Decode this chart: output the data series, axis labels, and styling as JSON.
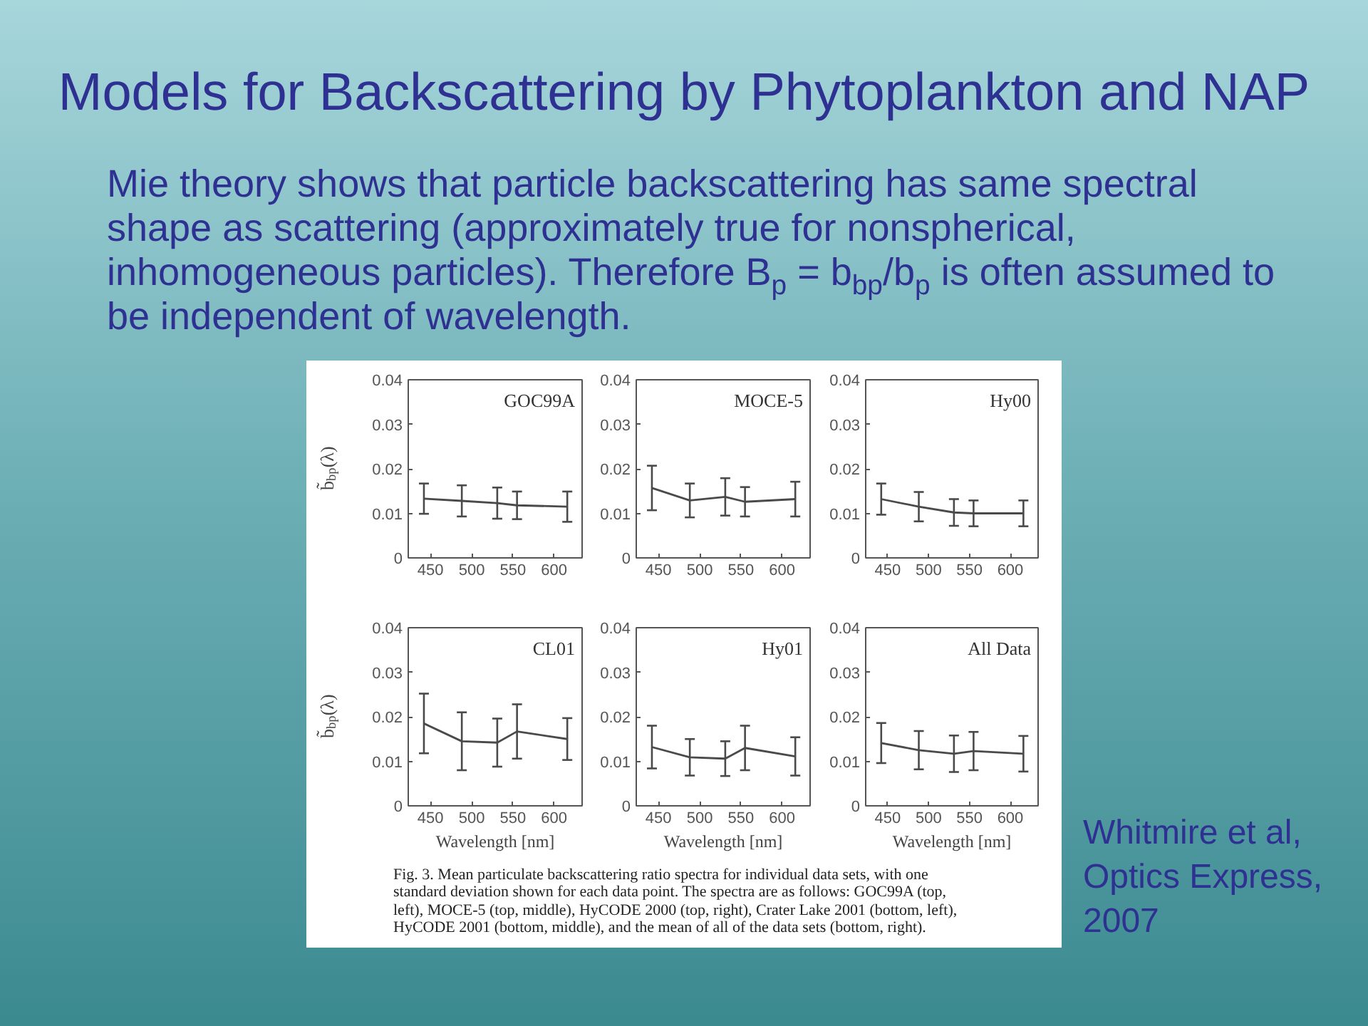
{
  "chart_data": [
    {
      "type": "line",
      "title": "GOC99A",
      "ylabel": "b̃$_{bp}$(λ)",
      "x": [
        442,
        488,
        531,
        555,
        616
      ],
      "values": [
        0.0133,
        0.0128,
        0.0123,
        0.0118,
        0.0115
      ],
      "errors": [
        0.0034,
        0.0035,
        0.0035,
        0.0031,
        0.0034
      ],
      "color": "#4a4a4a",
      "xlim": [
        423,
        634
      ],
      "ylim": [
        0,
        0.04
      ],
      "xticks": [
        450,
        500,
        550,
        600
      ],
      "yticks": [
        0,
        0.01,
        0.02,
        0.03,
        0.04
      ],
      "grid": false
    },
    {
      "type": "line",
      "title": "MOCE-5",
      "x": [
        442,
        488,
        531,
        555,
        616
      ],
      "values": [
        0.0157,
        0.0129,
        0.0137,
        0.0126,
        0.0132
      ],
      "errors": [
        0.005,
        0.0038,
        0.0042,
        0.0033,
        0.0039
      ],
      "color": "#4a4a4a",
      "xlim": [
        423,
        634
      ],
      "ylim": [
        0,
        0.04
      ],
      "xticks": [
        450,
        500,
        550,
        600
      ],
      "yticks": [
        0,
        0.01,
        0.02,
        0.03,
        0.04
      ],
      "grid": false
    },
    {
      "type": "line",
      "title": "Hy00",
      "x": [
        442,
        488,
        531,
        555,
        616
      ],
      "values": [
        0.0132,
        0.0115,
        0.0102,
        0.01,
        0.01
      ],
      "errors": [
        0.0035,
        0.0033,
        0.003,
        0.0029,
        0.0029
      ],
      "color": "#4a4a4a",
      "xlim": [
        423,
        634
      ],
      "ylim": [
        0,
        0.04
      ],
      "xticks": [
        450,
        500,
        550,
        600
      ],
      "yticks": [
        0,
        0.01,
        0.02,
        0.03,
        0.04
      ],
      "grid": false
    },
    {
      "type": "line",
      "title": "CL01",
      "xlabel": "Wavelength [nm]",
      "ylabel": "b̃$_{bp}$(λ)",
      "x": [
        442,
        488,
        531,
        555,
        616
      ],
      "values": [
        0.0185,
        0.0145,
        0.0142,
        0.0167,
        0.015
      ],
      "errors": [
        0.0067,
        0.0065,
        0.0054,
        0.0061,
        0.0047
      ],
      "color": "#4a4a4a",
      "xlim": [
        423,
        634
      ],
      "ylim": [
        0,
        0.04
      ],
      "xticks": [
        450,
        500,
        550,
        600
      ],
      "yticks": [
        0,
        0.01,
        0.02,
        0.03,
        0.04
      ],
      "grid": false
    },
    {
      "type": "line",
      "title": "Hy01",
      "xlabel": "Wavelength [nm]",
      "x": [
        442,
        488,
        531,
        555,
        616
      ],
      "values": [
        0.0132,
        0.0109,
        0.0106,
        0.013,
        0.0111
      ],
      "errors": [
        0.0048,
        0.0041,
        0.0039,
        0.005,
        0.0043
      ],
      "color": "#4a4a4a",
      "xlim": [
        423,
        634
      ],
      "ylim": [
        0,
        0.04
      ],
      "xticks": [
        450,
        500,
        550,
        600
      ],
      "yticks": [
        0,
        0.01,
        0.02,
        0.03,
        0.04
      ],
      "grid": false
    },
    {
      "type": "line",
      "title": "All Data",
      "xlabel": "Wavelength [nm]",
      "x": [
        442,
        488,
        531,
        555,
        616
      ],
      "values": [
        0.0141,
        0.0125,
        0.0117,
        0.0123,
        0.0117
      ],
      "errors": [
        0.0045,
        0.0043,
        0.0041,
        0.0043,
        0.004
      ],
      "color": "#4a4a4a",
      "xlim": [
        423,
        634
      ],
      "ylim": [
        0,
        0.04
      ],
      "xticks": [
        450,
        500,
        550,
        600
      ],
      "yticks": [
        0,
        0.01,
        0.02,
        0.03,
        0.04
      ],
      "grid": false
    },
    {
      "type": "other",
      "title": "Models for Backscattering by Phytoplankton and NAP",
      "subtitle": "Mie theory shows that particle backscattering has same spectral shape as scattering (approximately true for nonspherical, inhomogeneous particles). Therefore B$_{p}$ = b$_{bp}$/b$_{p}$ is often assumed to be independent of wavelength.",
      "annotations": [
        "Fig. 3. Mean particulate backscattering ratio spectra for individual data sets, with one standard deviation shown for each data point. The spectra are as follows: GOC99A (top, left), MOCE-5 (top, middle), HyCODE 2000 (top, right), Crater Lake 2001 (bottom, left), HyCODE 2001 (bottom, middle), and the mean of all of the data sets (bottom, right).",
        "Whitmire et al, Optics Express, 2007"
      ]
    }
  ]
}
